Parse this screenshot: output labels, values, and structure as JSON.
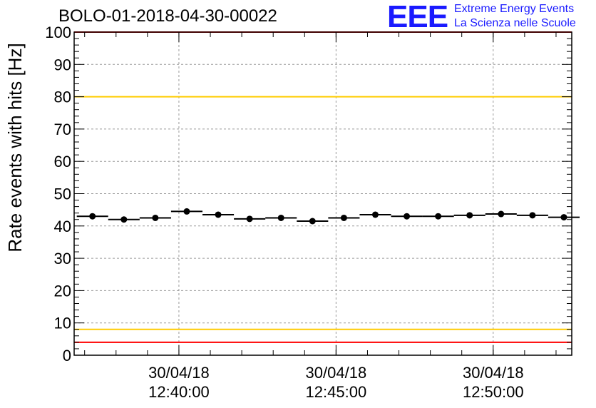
{
  "title": "BOLO-01-2018-04-30-00022",
  "logo": {
    "mark": "EEE",
    "line1": "Extreme Energy Events",
    "line2": "La Scienza nelle Scuole",
    "color": "#1a1aff"
  },
  "chart_data": {
    "type": "scatter",
    "title": "BOLO-01-2018-04-30-00022",
    "ylabel": "Rate events with hits [Hz]",
    "xlabel": "",
    "ylim": [
      0,
      100
    ],
    "y_ticks": [
      0,
      10,
      20,
      30,
      40,
      50,
      60,
      70,
      80,
      90,
      100
    ],
    "x_ticks": [
      {
        "date": "30/04/18",
        "time": "12:40:00"
      },
      {
        "date": "30/04/18",
        "time": "12:45:00"
      },
      {
        "date": "30/04/18",
        "time": "12:50:00"
      }
    ],
    "x_range": [
      "12:36:40",
      "12:52:30"
    ],
    "grid": true,
    "thresholds": [
      {
        "value": 100,
        "color": "#ff0000"
      },
      {
        "value": 80,
        "color": "#ffcc00"
      },
      {
        "value": 8,
        "color": "#ffcc00"
      },
      {
        "value": 4,
        "color": "#ff0000"
      }
    ],
    "series": [
      {
        "x": [
          "12:37:15",
          "12:38:15",
          "12:39:15",
          "12:40:15",
          "12:41:15",
          "12:42:15",
          "12:43:15",
          "12:44:15",
          "12:45:15",
          "12:46:15",
          "12:47:15",
          "12:48:15",
          "12:49:15",
          "12:50:15",
          "12:51:15",
          "12:52:15"
        ],
        "values": [
          43.0,
          42.0,
          42.5,
          44.5,
          43.5,
          42.2,
          42.5,
          41.5,
          42.5,
          43.5,
          43.0,
          43.0,
          43.3,
          43.7,
          43.3,
          42.7
        ],
        "bin_width_s": 60,
        "color": "#000000"
      }
    ]
  }
}
